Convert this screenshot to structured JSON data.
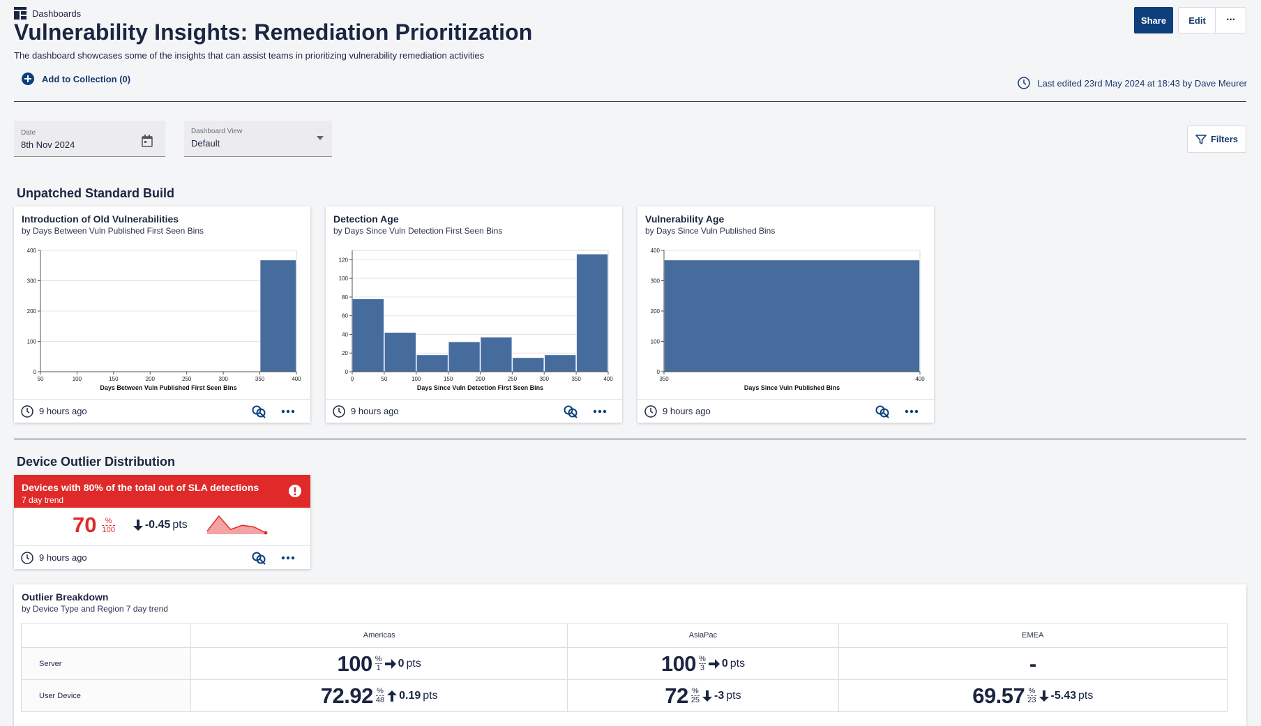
{
  "breadcrumb": {
    "label": "Dashboards"
  },
  "page": {
    "title": "Vulnerability Insights: Remediation Prioritization",
    "subtitle": "The dashboard showcases some of the insights that can assist teams in prioritizing vulnerability remediation activities",
    "add_collection": "Add to Collection (0)",
    "last_edited": "Last edited 23rd May 2024 at 18:43 by Dave Meurer"
  },
  "toolbar": {
    "share": "Share",
    "edit": "Edit",
    "more": "···"
  },
  "filters": {
    "date_label": "Date",
    "date_value": "8th Nov 2024",
    "view_label": "Dashboard View",
    "view_value": "Default",
    "filters_button": "Filters"
  },
  "sections": {
    "unpatched": "Unpatched Standard Build",
    "device_outlier": "Device Outlier Distribution"
  },
  "cards": [
    {
      "title": "Introduction of Old Vulnerabilities",
      "subtitle": "by Days Between Vuln Published First Seen Bins",
      "updated": "9 hours ago"
    },
    {
      "title": "Detection Age",
      "subtitle": "by Days Since Vuln Detection First Seen Bins",
      "updated": "9 hours ago"
    },
    {
      "title": "Vulnerability Age",
      "subtitle": "by Days Since Vuln Published Bins",
      "updated": "9 hours ago"
    }
  ],
  "chart_data": [
    {
      "type": "bar",
      "x": [
        50,
        100,
        150,
        200,
        250,
        300,
        350,
        400
      ],
      "bins": [
        {
          "from": 50,
          "to": 350,
          "value": 0
        },
        {
          "from": 350,
          "to": 400,
          "value": 368
        }
      ],
      "xlabel": "Days Between Vuln Published First Seen Bins",
      "ylabel": "",
      "xlim": [
        50,
        400
      ],
      "ylim": [
        0,
        400
      ],
      "yticks": [
        0,
        100,
        200,
        300,
        400
      ],
      "grid": true,
      "color": "#466c9e"
    },
    {
      "type": "bar",
      "x": [
        0,
        50,
        100,
        150,
        200,
        250,
        300,
        350,
        400
      ],
      "bins": [
        {
          "from": 0,
          "to": 50,
          "value": 78
        },
        {
          "from": 50,
          "to": 100,
          "value": 42
        },
        {
          "from": 100,
          "to": 150,
          "value": 18
        },
        {
          "from": 150,
          "to": 200,
          "value": 32
        },
        {
          "from": 200,
          "to": 250,
          "value": 37
        },
        {
          "from": 250,
          "to": 300,
          "value": 15
        },
        {
          "from": 300,
          "to": 350,
          "value": 18
        },
        {
          "from": 350,
          "to": 400,
          "value": 126
        }
      ],
      "xlabel": "Days Since Vuln Detection First Seen Bins",
      "ylabel": "",
      "xlim": [
        0,
        400
      ],
      "ylim": [
        0,
        130
      ],
      "yticks": [
        0,
        20,
        40,
        60,
        80,
        100,
        120
      ],
      "grid": true,
      "color": "#466c9e"
    },
    {
      "type": "bar",
      "x": [
        350,
        400
      ],
      "bins": [
        {
          "from": 350,
          "to": 400,
          "value": 368
        }
      ],
      "xlabel": "Days Since Vuln Published Bins",
      "ylabel": "",
      "xlim": [
        350,
        400
      ],
      "ylim": [
        0,
        400
      ],
      "yticks": [
        0,
        100,
        200,
        300,
        400
      ],
      "grid": true,
      "color": "#466c9e"
    }
  ],
  "alert_card": {
    "title": "Devices with 80% of the total out of SLA detections",
    "subtitle": "7 day trend",
    "value": "70",
    "unit": "%",
    "denominator": "100",
    "change": "-0.45",
    "change_unit": "pts",
    "trend": [
      0.1,
      1.0,
      0.2,
      0.45,
      0.35,
      0.0
    ],
    "updated": "9 hours ago",
    "color": "#e02a2a"
  },
  "breakdown": {
    "title": "Outlier Breakdown",
    "subtitle": "by Device Type and Region 7 day trend",
    "columns": [
      "Americas",
      "AsiaPac",
      "EMEA"
    ],
    "rows": [
      {
        "label": "Server",
        "cells": [
          {
            "value": "100",
            "unit": "%",
            "den": "1",
            "dir": "flat",
            "change": "0",
            "cu": "pts"
          },
          {
            "value": "100",
            "unit": "%",
            "den": "3",
            "dir": "flat",
            "change": "0",
            "cu": "pts"
          },
          {
            "value": "-",
            "unit": "",
            "den": "",
            "dir": "none",
            "change": "",
            "cu": ""
          }
        ]
      },
      {
        "label": "User Device",
        "cells": [
          {
            "value": "72.92",
            "unit": "%",
            "den": "48",
            "dir": "up",
            "change": "0.19",
            "cu": "pts"
          },
          {
            "value": "72",
            "unit": "%",
            "den": "25",
            "dir": "down",
            "change": "-3",
            "cu": "pts"
          },
          {
            "value": "69.57",
            "unit": "%",
            "den": "23",
            "dir": "down",
            "change": "-5.43",
            "cu": "pts"
          }
        ]
      }
    ]
  }
}
